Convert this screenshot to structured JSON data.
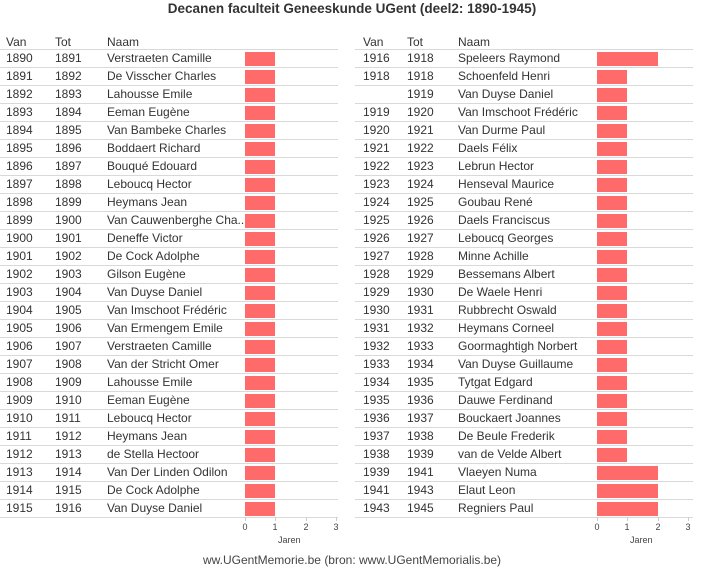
{
  "title": "Decanen faculteit Geneeskunde UGent (deel2: 1890-1945)",
  "footer": "ww.UGentMemorie.be (bron: www.UGentMemorialis.be)",
  "headers": {
    "van": "Van",
    "tot": "Tot",
    "naam": "Naam"
  },
  "colors": {
    "bar": "#ff6b6b",
    "grid": "#d9d9d9"
  },
  "chart_data": [
    {
      "type": "bar",
      "title": "Decanen faculteit Geneeskunde UGent (deel2: 1890-1945)",
      "xlabel": "Jaren",
      "xlim": [
        0,
        3
      ],
      "ticks": [
        "0",
        "1",
        "2",
        "3"
      ],
      "columns": [
        "Van",
        "Tot",
        "Naam"
      ],
      "rows": [
        {
          "van": "1890",
          "tot": "1891",
          "naam": "Verstraeten Camille",
          "value": 1
        },
        {
          "van": "1891",
          "tot": "1892",
          "naam": "De Visscher Charles",
          "value": 1
        },
        {
          "van": "1892",
          "tot": "1893",
          "naam": "Lahousse Emile",
          "value": 1
        },
        {
          "van": "1893",
          "tot": "1894",
          "naam": "Eeman Eugène",
          "value": 1
        },
        {
          "van": "1894",
          "tot": "1895",
          "naam": "Van Bambeke Charles",
          "value": 1
        },
        {
          "van": "1895",
          "tot": "1896",
          "naam": "Boddaert Richard",
          "value": 1
        },
        {
          "van": "1896",
          "tot": "1897",
          "naam": "Bouqué Edouard",
          "value": 1
        },
        {
          "van": "1897",
          "tot": "1898",
          "naam": "Leboucq Hector",
          "value": 1
        },
        {
          "van": "1898",
          "tot": "1899",
          "naam": "Heymans Jean",
          "value": 1
        },
        {
          "van": "1899",
          "tot": "1900",
          "naam": "Van Cauwenberghe Cha..",
          "value": 1
        },
        {
          "van": "1900",
          "tot": "1901",
          "naam": "Deneffe Victor",
          "value": 1
        },
        {
          "van": "1901",
          "tot": "1902",
          "naam": "De Cock Adolphe",
          "value": 1
        },
        {
          "van": "1902",
          "tot": "1903",
          "naam": "Gilson Eugène",
          "value": 1
        },
        {
          "van": "1903",
          "tot": "1904",
          "naam": "Van Duyse Daniel",
          "value": 1
        },
        {
          "van": "1904",
          "tot": "1905",
          "naam": "Van Imschoot Frédéric",
          "value": 1
        },
        {
          "van": "1905",
          "tot": "1906",
          "naam": "Van Ermengem Emile",
          "value": 1
        },
        {
          "van": "1906",
          "tot": "1907",
          "naam": "Verstraeten Camille",
          "value": 1
        },
        {
          "van": "1907",
          "tot": "1908",
          "naam": "Van der Stricht Omer",
          "value": 1
        },
        {
          "van": "1908",
          "tot": "1909",
          "naam": "Lahousse Emile",
          "value": 1
        },
        {
          "van": "1909",
          "tot": "1910",
          "naam": "Eeman Eugène",
          "value": 1
        },
        {
          "van": "1910",
          "tot": "1911",
          "naam": "Leboucq Hector",
          "value": 1
        },
        {
          "van": "1911",
          "tot": "1912",
          "naam": "Heymans Jean",
          "value": 1
        },
        {
          "van": "1912",
          "tot": "1913",
          "naam": "de Stella Hectoor",
          "value": 1
        },
        {
          "van": "1913",
          "tot": "1914",
          "naam": "Van Der Linden Odilon",
          "value": 1
        },
        {
          "van": "1914",
          "tot": "1915",
          "naam": "De Cock Adolphe",
          "value": 1
        },
        {
          "van": "1915",
          "tot": "1916",
          "naam": "Van Duyse Daniel",
          "value": 1
        }
      ]
    },
    {
      "type": "bar",
      "xlabel": "Jaren",
      "xlim": [
        0,
        3
      ],
      "ticks": [
        "0",
        "1",
        "2",
        "3"
      ],
      "columns": [
        "Van",
        "Tot",
        "Naam"
      ],
      "rows": [
        {
          "van": "1916",
          "tot": "1918",
          "naam": "Speleers Raymond",
          "value": 2
        },
        {
          "van": "1918",
          "tot": "1918",
          "naam": "Schoenfeld Henri",
          "value": 1
        },
        {
          "van": "",
          "tot": "1919",
          "naam": "Van Duyse Daniel",
          "value": 1
        },
        {
          "van": "1919",
          "tot": "1920",
          "naam": "Van Imschoot Frédéric",
          "value": 1
        },
        {
          "van": "1920",
          "tot": "1921",
          "naam": "Van Durme Paul",
          "value": 1
        },
        {
          "van": "1921",
          "tot": "1922",
          "naam": "Daels Félix",
          "value": 1
        },
        {
          "van": "1922",
          "tot": "1923",
          "naam": "Lebrun Hector",
          "value": 1
        },
        {
          "van": "1923",
          "tot": "1924",
          "naam": "Henseval Maurice",
          "value": 1
        },
        {
          "van": "1924",
          "tot": "1925",
          "naam": "Goubau René",
          "value": 1
        },
        {
          "van": "1925",
          "tot": "1926",
          "naam": "Daels Franciscus",
          "value": 1
        },
        {
          "van": "1926",
          "tot": "1927",
          "naam": "Leboucq Georges",
          "value": 1
        },
        {
          "van": "1927",
          "tot": "1928",
          "naam": "Minne Achille",
          "value": 1
        },
        {
          "van": "1928",
          "tot": "1929",
          "naam": "Bessemans Albert",
          "value": 1
        },
        {
          "van": "1929",
          "tot": "1930",
          "naam": "De Waele Henri",
          "value": 1
        },
        {
          "van": "1930",
          "tot": "1931",
          "naam": "Rubbrecht Oswald",
          "value": 1
        },
        {
          "van": "1931",
          "tot": "1932",
          "naam": "Heymans Corneel",
          "value": 1
        },
        {
          "van": "1932",
          "tot": "1933",
          "naam": "Goormaghtigh Norbert",
          "value": 1
        },
        {
          "van": "1933",
          "tot": "1934",
          "naam": "Van Duyse Guillaume",
          "value": 1
        },
        {
          "van": "1934",
          "tot": "1935",
          "naam": "Tytgat Edgard",
          "value": 1
        },
        {
          "van": "1935",
          "tot": "1936",
          "naam": "Dauwe Ferdinand",
          "value": 1
        },
        {
          "van": "1936",
          "tot": "1937",
          "naam": "Bouckaert Joannes",
          "value": 1
        },
        {
          "van": "1937",
          "tot": "1938",
          "naam": "De Beule Frederik",
          "value": 1
        },
        {
          "van": "1938",
          "tot": "1939",
          "naam": "van de Velde Albert",
          "value": 1
        },
        {
          "van": "1939",
          "tot": "1941",
          "naam": "Vlaeyen Numa",
          "value": 2
        },
        {
          "van": "1941",
          "tot": "1943",
          "naam": "Elaut Leon",
          "value": 2
        },
        {
          "van": "1943",
          "tot": "1945",
          "naam": "Regniers Paul",
          "value": 2
        }
      ]
    }
  ]
}
